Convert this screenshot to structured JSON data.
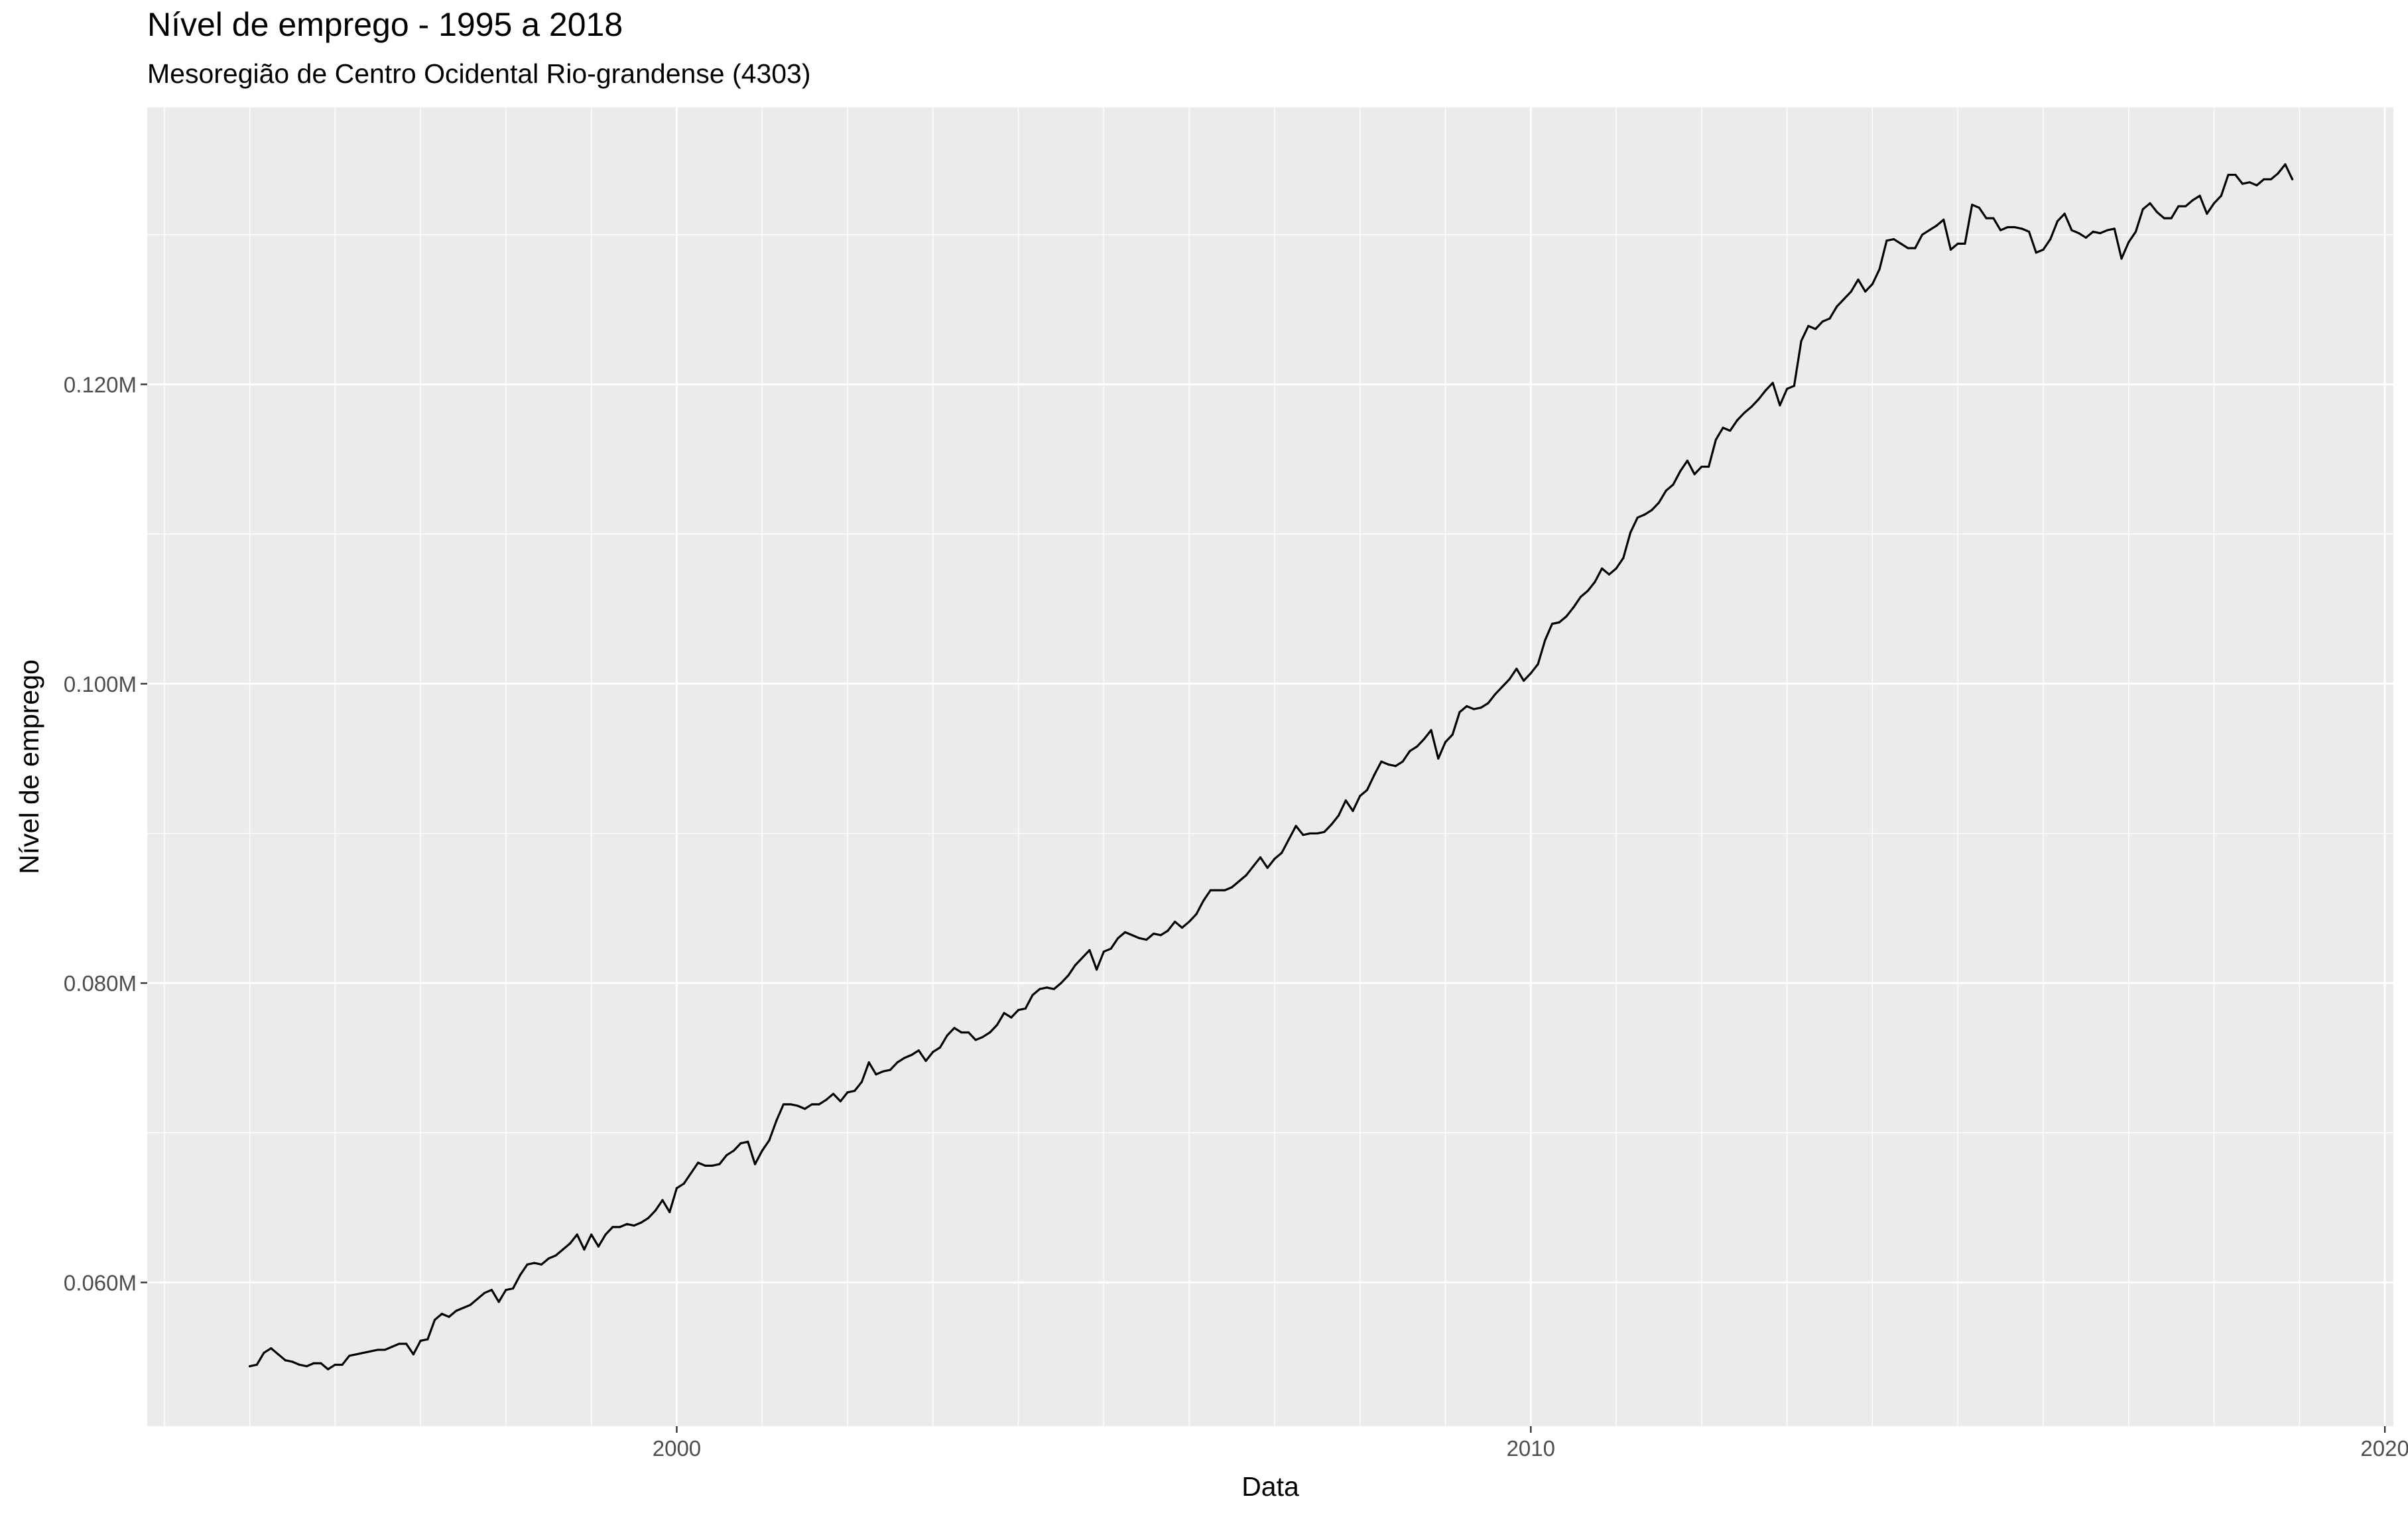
{
  "chart_data": {
    "type": "line",
    "title": "Nível de emprego - 1995 a 2018",
    "subtitle": "Mesoregião de Centro Ocidental Rio-grandense (4303)",
    "xlabel": "Data",
    "ylabel": "Nível de emprego",
    "xlim": [
      1993.8,
      2020.1
    ],
    "ylim": [
      0.0504,
      0.1385
    ],
    "x_ticks": [
      2000,
      2010,
      2020
    ],
    "x_tick_labels": [
      "2000",
      "2010",
      "2020"
    ],
    "y_ticks": [
      0.06,
      0.08,
      0.1,
      0.12
    ],
    "y_tick_labels": [
      "0.060M",
      "0.080M",
      "0.100M",
      "0.120M"
    ],
    "grid": true,
    "line_color": "#000000",
    "panel_background": "#ebebeb",
    "grid_color": "#ffffff",
    "x_start": "1995-01",
    "x_step": "1 month",
    "values": [
      0.0544,
      0.0545,
      0.0553,
      0.0556,
      0.0552,
      0.0548,
      0.0547,
      0.0545,
      0.0544,
      0.0546,
      0.0546,
      0.0542,
      0.0545,
      0.0545,
      0.0551,
      0.0552,
      0.0553,
      0.0554,
      0.0555,
      0.0555,
      0.0557,
      0.0559,
      0.0559,
      0.0552,
      0.0561,
      0.0562,
      0.0575,
      0.0579,
      0.0577,
      0.0581,
      0.0583,
      0.0585,
      0.0589,
      0.0593,
      0.0595,
      0.0587,
      0.0595,
      0.0596,
      0.0605,
      0.0612,
      0.0613,
      0.0612,
      0.0616,
      0.0618,
      0.0622,
      0.0626,
      0.0632,
      0.0622,
      0.0632,
      0.0624,
      0.0632,
      0.0637,
      0.0637,
      0.0639,
      0.0638,
      0.064,
      0.0643,
      0.0648,
      0.0655,
      0.0647,
      0.0663,
      0.0666,
      0.0673,
      0.068,
      0.0678,
      0.0678,
      0.0679,
      0.0685,
      0.0688,
      0.0693,
      0.0694,
      0.0679,
      0.0688,
      0.0695,
      0.0708,
      0.0719,
      0.0719,
      0.0718,
      0.0716,
      0.0719,
      0.0719,
      0.0722,
      0.0726,
      0.0721,
      0.0727,
      0.0728,
      0.0734,
      0.0747,
      0.0739,
      0.0741,
      0.0742,
      0.0747,
      0.075,
      0.0752,
      0.0755,
      0.0748,
      0.0754,
      0.0757,
      0.0765,
      0.077,
      0.0767,
      0.0767,
      0.0762,
      0.0764,
      0.0767,
      0.0772,
      0.078,
      0.0777,
      0.0782,
      0.0783,
      0.0792,
      0.0796,
      0.0797,
      0.0796,
      0.08,
      0.0805,
      0.0812,
      0.0817,
      0.0822,
      0.0809,
      0.0821,
      0.0823,
      0.083,
      0.0834,
      0.0832,
      0.083,
      0.0829,
      0.0833,
      0.0832,
      0.0835,
      0.0841,
      0.0837,
      0.0841,
      0.0846,
      0.0855,
      0.0862,
      0.0862,
      0.0862,
      0.0864,
      0.0868,
      0.0872,
      0.0878,
      0.0884,
      0.0877,
      0.0883,
      0.0887,
      0.0896,
      0.0905,
      0.0899,
      0.09,
      0.09,
      0.0901,
      0.0906,
      0.0912,
      0.0922,
      0.0915,
      0.0925,
      0.0929,
      0.0939,
      0.0948,
      0.0946,
      0.0945,
      0.0948,
      0.0955,
      0.0958,
      0.0963,
      0.0969,
      0.095,
      0.0961,
      0.0966,
      0.0981,
      0.0985,
      0.0983,
      0.0984,
      0.0987,
      0.0993,
      0.0998,
      0.1003,
      0.101,
      0.1002,
      0.1007,
      0.1013,
      0.1029,
      0.104,
      0.1041,
      0.1045,
      0.1051,
      0.1058,
      0.1062,
      0.1068,
      0.1077,
      0.1073,
      0.1077,
      0.1084,
      0.1101,
      0.1111,
      0.1113,
      0.1116,
      0.1121,
      0.1129,
      0.1133,
      0.1142,
      0.1149,
      0.114,
      0.1145,
      0.1145,
      0.1163,
      0.1171,
      0.1169,
      0.1176,
      0.1181,
      0.1185,
      0.119,
      0.1196,
      0.1201,
      0.1186,
      0.1197,
      0.1199,
      0.1229,
      0.1239,
      0.1237,
      0.1242,
      0.1244,
      0.1252,
      0.1257,
      0.1262,
      0.127,
      0.1262,
      0.1267,
      0.1277,
      0.1296,
      0.1297,
      0.1294,
      0.1291,
      0.1291,
      0.13,
      0.1303,
      0.1306,
      0.131,
      0.129,
      0.1294,
      0.1294,
      0.132,
      0.1318,
      0.1311,
      0.1311,
      0.1303,
      0.1305,
      0.1305,
      0.1304,
      0.1302,
      0.1288,
      0.129,
      0.1297,
      0.1309,
      0.1314,
      0.1303,
      0.1301,
      0.1298,
      0.1302,
      0.1301,
      0.1303,
      0.1304,
      0.1284,
      0.1295,
      0.1302,
      0.1317,
      0.1321,
      0.1315,
      0.1311,
      0.1311,
      0.1319,
      0.1319,
      0.1323,
      0.1326,
      0.1314,
      0.1321,
      0.1326,
      0.134,
      0.134,
      0.1334,
      0.1335,
      0.1333,
      0.1337,
      0.1337,
      0.1341,
      0.1347,
      0.1337
    ]
  }
}
